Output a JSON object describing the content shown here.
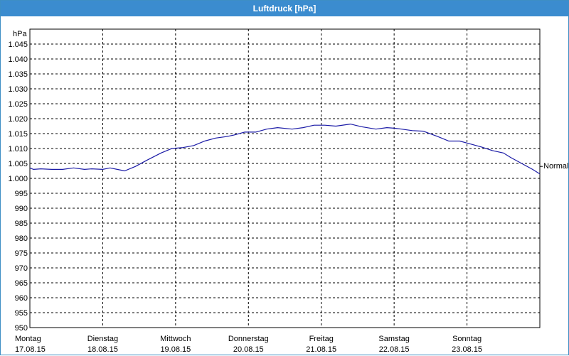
{
  "window": {
    "title": "Luftdruck [hPa]"
  },
  "chart_data": {
    "type": "line",
    "title": "Luftdruck [hPa]",
    "ylabel": "hPa",
    "ylim": [
      950,
      1050
    ],
    "yticks": [
      "950",
      "955",
      "960",
      "965",
      "970",
      "975",
      "980",
      "985",
      "990",
      "995",
      "1.000",
      "1.005",
      "1.010",
      "1.015",
      "1.020",
      "1.025",
      "1.030",
      "1.035",
      "1.040",
      "1.045"
    ],
    "xlim": [
      0,
      7
    ],
    "xticks": [
      {
        "day": "Montag",
        "date": "17.08.15"
      },
      {
        "day": "Dienstag",
        "date": "18.08.15"
      },
      {
        "day": "Mittwoch",
        "date": "19.08.15"
      },
      {
        "day": "Donnerstag",
        "date": "20.08.15"
      },
      {
        "day": "Freitag",
        "date": "21.08.15"
      },
      {
        "day": "Samstag",
        "date": "22.08.15"
      },
      {
        "day": "Sonntag",
        "date": "23.08.15"
      }
    ],
    "grid": true,
    "reference_line": {
      "label": "Normal",
      "value": 1004
    },
    "series": [
      {
        "color": "#1a1aa6",
        "x": [
          0,
          0.05,
          0.15,
          0.3,
          0.45,
          0.6,
          0.75,
          0.85,
          1.0,
          1.1,
          1.2,
          1.3,
          1.45,
          1.6,
          1.8,
          1.95,
          2.1,
          2.25,
          2.4,
          2.55,
          2.7,
          2.8,
          2.95,
          3.1,
          3.25,
          3.4,
          3.6,
          3.75,
          3.9,
          4.05,
          4.2,
          4.4,
          4.55,
          4.75,
          4.9,
          5.0,
          5.1,
          5.25,
          5.4,
          5.6,
          5.75,
          5.9,
          6.05,
          6.2,
          6.35,
          6.5,
          6.6,
          6.75,
          6.9,
          7.0
        ],
        "y": [
          1003.5,
          1003.0,
          1003.2,
          1003.0,
          1003.0,
          1003.5,
          1003.0,
          1003.2,
          1003.0,
          1003.5,
          1003.0,
          1002.5,
          1004.0,
          1006.0,
          1008.5,
          1010.0,
          1010.3,
          1011.0,
          1012.5,
          1013.5,
          1014.0,
          1014.5,
          1015.5,
          1015.5,
          1016.5,
          1017.0,
          1016.5,
          1017.0,
          1017.8,
          1017.8,
          1017.5,
          1018.2,
          1017.3,
          1016.5,
          1017.0,
          1016.8,
          1016.5,
          1016.0,
          1015.8,
          1014.0,
          1012.5,
          1012.5,
          1011.5,
          1010.5,
          1009.3,
          1008.5,
          1007.0,
          1005.0,
          1003.0,
          1001.5
        ]
      }
    ]
  }
}
